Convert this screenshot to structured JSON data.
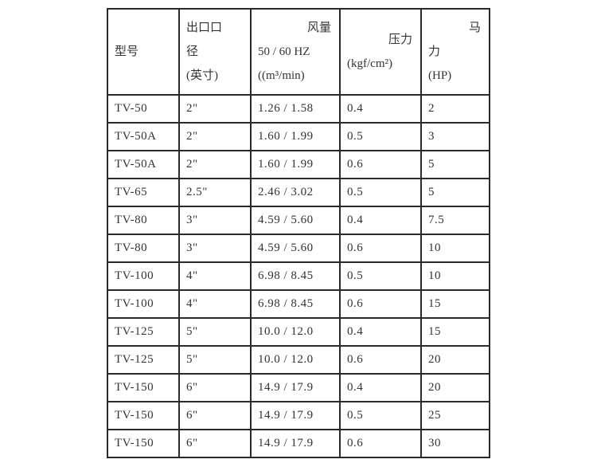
{
  "headers": {
    "model": "型号",
    "outlet": [
      "出口口",
      "径",
      "(英寸)"
    ],
    "air": [
      "风量",
      "50 / 60 HZ",
      "((m³/min)"
    ],
    "pressure": [
      "压力",
      "(kgf/cm²)"
    ],
    "hp": [
      "马",
      "力",
      "(HP)"
    ]
  },
  "rows": [
    [
      "TV-50",
      "2\"",
      "1.26 / 1.58",
      "0.4",
      "2"
    ],
    [
      "TV-50A",
      "2\"",
      "1.60 / 1.99",
      "0.5",
      "3"
    ],
    [
      "TV-50A",
      "2\"",
      "1.60 / 1.99",
      "0.6",
      "5"
    ],
    [
      "TV-65",
      "2.5\"",
      "2.46 / 3.02",
      "0.5",
      "5"
    ],
    [
      "TV-80",
      "3\"",
      "4.59 / 5.60",
      "0.4",
      "7.5"
    ],
    [
      "TV-80",
      "3\"",
      "4.59 / 5.60",
      "0.6",
      "10"
    ],
    [
      "TV-100",
      "4\"",
      "6.98 / 8.45",
      "0.5",
      "10"
    ],
    [
      "TV-100",
      "4\"",
      "6.98 / 8.45",
      "0.6",
      "15"
    ],
    [
      "TV-125",
      "5\"",
      "10.0 / 12.0",
      "0.4",
      "15"
    ],
    [
      "TV-125",
      "5\"",
      "10.0 / 12.0",
      "0.6",
      "20"
    ],
    [
      "TV-150",
      "6\"",
      "14.9 / 17.9",
      "0.4",
      "20"
    ],
    [
      "TV-150",
      "6\"",
      "14.9 / 17.9",
      "0.5",
      "25"
    ],
    [
      "TV-150",
      "6\"",
      "14.9 / 17.9",
      "0.6",
      "30"
    ]
  ]
}
